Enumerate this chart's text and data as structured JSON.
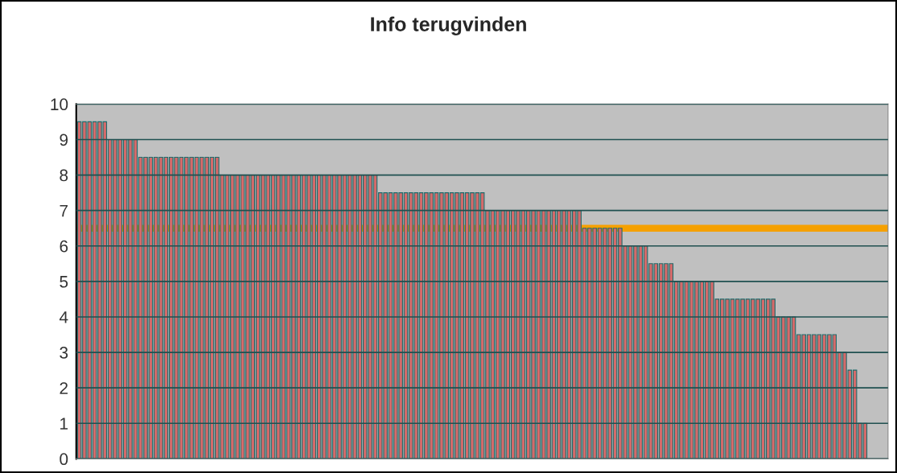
{
  "chart_data": {
    "type": "bar",
    "title": "Info terugvinden",
    "categories": [
      null,
      null,
      null,
      null,
      null,
      null,
      null,
      null,
      null,
      null,
      null,
      null,
      null,
      null,
      null,
      null,
      null,
      null,
      null,
      null,
      null,
      null,
      null,
      null,
      null,
      null,
      null,
      null,
      null,
      null,
      null,
      null,
      null,
      null,
      null,
      null,
      null,
      null,
      null,
      null,
      null,
      null,
      null,
      null,
      null,
      null,
      null,
      null,
      null,
      null,
      null,
      null,
      null,
      null,
      null,
      null,
      null,
      null,
      null,
      null,
      null,
      null,
      null,
      null,
      null,
      null,
      null,
      null,
      null,
      null,
      null,
      null,
      null,
      null,
      null,
      null,
      null,
      null,
      null,
      null,
      null,
      null,
      null,
      null,
      null,
      null,
      null,
      null,
      null,
      null,
      null,
      null,
      null,
      null,
      null,
      null,
      null,
      null,
      null,
      null,
      null,
      null,
      null,
      null,
      null,
      null,
      null,
      null,
      null,
      null,
      null,
      null,
      null,
      null,
      null,
      null,
      null,
      null,
      null,
      null,
      null,
      null,
      null,
      null,
      null,
      null,
      null,
      null,
      null,
      null,
      null,
      null,
      null,
      null,
      null,
      null,
      null,
      null,
      null,
      null,
      null,
      null,
      null,
      null,
      null,
      null,
      null,
      null,
      null,
      null,
      null,
      null,
      null,
      null,
      null
    ],
    "series": [
      {
        "color": "#d46a6a",
        "values": [
          9.5,
          9.5,
          9.5,
          9.5,
          9.5,
          9.5,
          9,
          9,
          9,
          9,
          9,
          9,
          8.5,
          8.5,
          8.5,
          8.5,
          8.5,
          8.5,
          8.5,
          8.5,
          8.5,
          8.5,
          8.5,
          8.5,
          8.5,
          8.5,
          8.5,
          8.5,
          8,
          8,
          8,
          8,
          8,
          8,
          8,
          8,
          8,
          8,
          8,
          8,
          8,
          8,
          8,
          8,
          8,
          8,
          8,
          8,
          8,
          8,
          8,
          8,
          8,
          8,
          8,
          8,
          8,
          8,
          8,
          7.5,
          7.5,
          7.5,
          7.5,
          7.5,
          7.5,
          7.5,
          7.5,
          7.5,
          7.5,
          7.5,
          7.5,
          7.5,
          7.5,
          7.5,
          7.5,
          7.5,
          7.5,
          7.5,
          7.5,
          7.5,
          7,
          7,
          7,
          7,
          7,
          7,
          7,
          7,
          7,
          7,
          7,
          7,
          7,
          7,
          7,
          7,
          7,
          7,
          7,
          6.5,
          6.5,
          6.5,
          6.5,
          6.5,
          6.5,
          6.5,
          6.5,
          6,
          6,
          6,
          6,
          6,
          5.5,
          5.5,
          5.5,
          5.5,
          5.5,
          5,
          5,
          5,
          5,
          5,
          5,
          5,
          5,
          4.5,
          4.5,
          4.5,
          4.5,
          4.5,
          4.5,
          4.5,
          4.5,
          4.5,
          4.5,
          4.5,
          4.5,
          4,
          4,
          4,
          4,
          3.5,
          3.5,
          3.5,
          3.5,
          3.5,
          3.5,
          3.5,
          3.5,
          3,
          3,
          2.5,
          2.5,
          1,
          1
        ]
      }
    ],
    "ylim": [
      0,
      10
    ],
    "yticks": [
      0,
      1,
      2,
      3,
      4,
      5,
      6,
      7,
      8,
      9,
      10
    ],
    "grid": "y",
    "ref_lines": [
      {
        "axis": "y",
        "value": 6.5,
        "color": "#f5a000"
      }
    ]
  }
}
